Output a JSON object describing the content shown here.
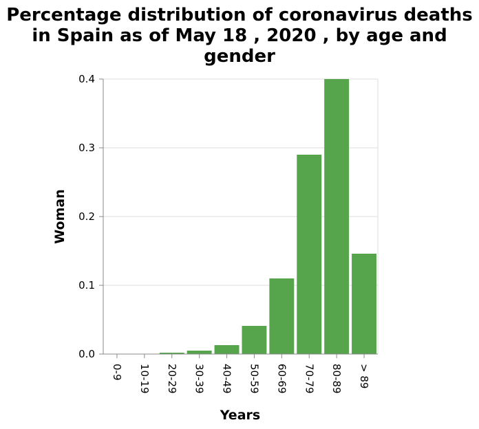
{
  "chart_data": {
    "type": "bar",
    "title_lines": [
      "Percentage distribution of coronavirus deaths",
      "in Spain as of May 18 , 2020 , by age and",
      "gender"
    ],
    "xlabel": "Years",
    "ylabel": "Woman",
    "categories": [
      "0-9",
      "10-19",
      "20-29",
      "30-39",
      "40-49",
      "50-59",
      "60-69",
      "70-79",
      "80-89",
      "> 89"
    ],
    "values": [
      0.0,
      0.0,
      0.002,
      0.005,
      0.013,
      0.041,
      0.11,
      0.29,
      0.4,
      0.146
    ],
    "ylim": [
      0,
      0.4
    ],
    "yticks": [
      "0.0",
      "0.1",
      "0.2",
      "0.3",
      "0.4"
    ],
    "ytick_values": [
      0,
      0.1,
      0.2,
      0.3,
      0.4
    ],
    "grid": true,
    "bar_color": "#56a44c"
  }
}
